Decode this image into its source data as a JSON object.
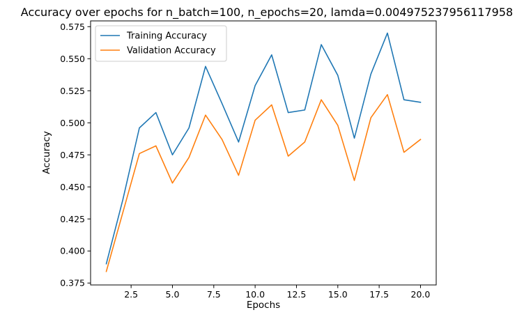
{
  "chart_data": {
    "type": "line",
    "title": "Accuracy over epochs for n_batch=100, n_epochs=20, lamda=0.004975237956117958",
    "xlabel": "Epochs",
    "ylabel": "Accuracy",
    "x": [
      1,
      2,
      3,
      4,
      5,
      6,
      7,
      8,
      9,
      10,
      11,
      12,
      13,
      14,
      15,
      16,
      17,
      18,
      19,
      20
    ],
    "xlim": [
      0.05,
      20.95
    ],
    "ylim": [
      0.3735,
      0.5795
    ],
    "xticks": [
      2.5,
      5.0,
      7.5,
      10.0,
      12.5,
      15.0,
      17.5,
      20.0
    ],
    "xtick_labels": [
      "2.5",
      "5.0",
      "7.5",
      "10.0",
      "12.5",
      "15.0",
      "17.5",
      "20.0"
    ],
    "yticks": [
      0.375,
      0.4,
      0.425,
      0.45,
      0.475,
      0.5,
      0.525,
      0.55,
      0.575
    ],
    "ytick_labels": [
      "0.375",
      "0.400",
      "0.425",
      "0.450",
      "0.475",
      "0.500",
      "0.525",
      "0.550",
      "0.575"
    ],
    "grid": false,
    "legend_position": "top-left",
    "series": [
      {
        "name": "Training Accuracy",
        "color": "#1f77b4",
        "values": [
          0.39,
          0.44,
          0.496,
          0.508,
          0.475,
          0.496,
          0.544,
          0.515,
          0.485,
          0.529,
          0.553,
          0.508,
          0.51,
          0.561,
          0.537,
          0.488,
          0.538,
          0.57,
          0.518,
          0.516
        ]
      },
      {
        "name": "Validation Accuracy",
        "color": "#ff7f0e",
        "values": [
          0.384,
          0.43,
          0.476,
          0.482,
          0.453,
          0.473,
          0.506,
          0.487,
          0.459,
          0.502,
          0.514,
          0.474,
          0.485,
          0.518,
          0.498,
          0.455,
          0.504,
          0.522,
          0.477,
          0.487
        ]
      }
    ]
  }
}
